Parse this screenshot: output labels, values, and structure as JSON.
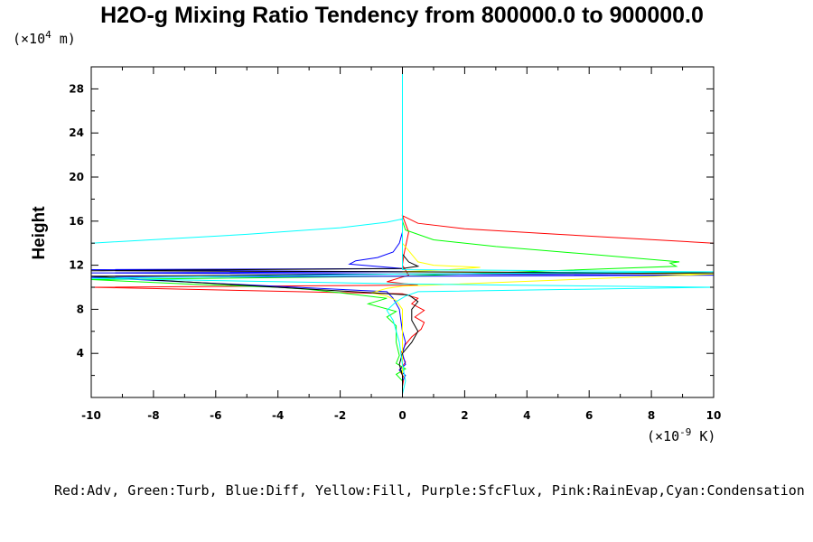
{
  "chart_data": {
    "type": "line",
    "title": "H2O-g Mixing Ratio Tendency from 800000.0 to 900000.0",
    "ylabel": "Height",
    "y_unit": {
      "prefix": "(×10",
      "exp": "4",
      "suffix": " m)"
    },
    "x_unit": {
      "prefix": "(×10",
      "exp": "-9",
      "suffix": " K)"
    },
    "xlim": [
      -10,
      10
    ],
    "ylim": [
      0,
      30
    ],
    "x_ticks": [
      "-10",
      "-8",
      "-6",
      "-4",
      "-2",
      "0",
      "2",
      "4",
      "6",
      "8",
      "10"
    ],
    "y_ticks": [
      "4",
      "8",
      "12",
      "16",
      "20",
      "24",
      "28"
    ],
    "legend_text": "Red:Adv, Green:Turb, Blue:Diff, Yellow:Fill, Purple:SfcFlux, Pink:RainEvap,Cyan:Condensation",
    "series": [
      {
        "color": "#ff0000",
        "points": [
          [
            0,
            1
          ],
          [
            0.05,
            1.8
          ],
          [
            -0.1,
            2.5
          ],
          [
            0.1,
            3.2
          ],
          [
            -0.05,
            4
          ],
          [
            0.1,
            4.8
          ],
          [
            0.3,
            5.5
          ],
          [
            0.6,
            6.2
          ],
          [
            0.7,
            6.8
          ],
          [
            0.4,
            7.3
          ],
          [
            0.7,
            7.9
          ],
          [
            0.3,
            8.5
          ],
          [
            0.5,
            9.0
          ],
          [
            0,
            9.4
          ],
          [
            -10,
            10
          ],
          [
            0.5,
            10.2
          ],
          [
            -0.5,
            10.5
          ],
          [
            0.2,
            11.1
          ],
          [
            0,
            12
          ],
          [
            0.05,
            13
          ],
          [
            0.2,
            15
          ],
          [
            0,
            16.5
          ],
          [
            0.5,
            15.8
          ],
          [
            2,
            15.3
          ],
          [
            5,
            14.8
          ],
          [
            10,
            14.0
          ]
        ]
      },
      {
        "color": "#00ff00",
        "points": [
          [
            0,
            0.5
          ],
          [
            0,
            1.5
          ],
          [
            -0.2,
            2.1
          ],
          [
            0.1,
            2.6
          ],
          [
            -0.2,
            3.1
          ],
          [
            -0.1,
            3.8
          ],
          [
            -0.2,
            5
          ],
          [
            -0.2,
            6.5
          ],
          [
            -0.5,
            7.3
          ],
          [
            -0.2,
            7.8
          ],
          [
            -1.1,
            8.5
          ],
          [
            -0.5,
            9.0
          ],
          [
            -2,
            9.5
          ],
          [
            -3,
            9.8
          ],
          [
            -4,
            10.0
          ],
          [
            -7,
            10.3
          ],
          [
            -10,
            10.7
          ],
          [
            0,
            11.0
          ],
          [
            8.8,
            11.9
          ],
          [
            8.6,
            12.2
          ],
          [
            8.9,
            12.3
          ],
          [
            6,
            13
          ],
          [
            3,
            13.7
          ],
          [
            1,
            14.3
          ],
          [
            0.1,
            15.2
          ],
          [
            0,
            16
          ]
        ]
      },
      {
        "color": "#0000ff",
        "points": [
          [
            0,
            0.3
          ],
          [
            0,
            1.5
          ],
          [
            0.1,
            2.0
          ],
          [
            -0.1,
            2.5
          ],
          [
            0.1,
            3.0
          ],
          [
            0,
            4.0
          ],
          [
            0.1,
            5
          ],
          [
            0,
            6
          ],
          [
            -0.1,
            8
          ],
          [
            -0.3,
            9.0
          ],
          [
            -0.5,
            9.6
          ],
          [
            -10,
            10.9
          ],
          [
            0,
            11.0
          ],
          [
            10,
            11.1
          ],
          [
            -10,
            11.3
          ],
          [
            0,
            11.4
          ],
          [
            -10,
            11.6
          ],
          [
            0,
            11.7
          ],
          [
            -1.7,
            12.1
          ],
          [
            -1.5,
            12.4
          ],
          [
            -0.8,
            12.7
          ],
          [
            -0.3,
            13.2
          ],
          [
            -0.1,
            14.0
          ],
          [
            0,
            15
          ]
        ]
      },
      {
        "color": "#ffff00",
        "points": [
          [
            0,
            0.5
          ],
          [
            0,
            3
          ],
          [
            0,
            6
          ],
          [
            0,
            8
          ],
          [
            -0.2,
            8.8
          ],
          [
            -0.5,
            9.2
          ],
          [
            -1.0,
            9.5
          ],
          [
            -0.5,
            9.9
          ],
          [
            0,
            10.1
          ],
          [
            10,
            11.2
          ],
          [
            0,
            11.4
          ],
          [
            1.5,
            11.6
          ],
          [
            2.5,
            11.8
          ],
          [
            1,
            12.0
          ],
          [
            0.5,
            12.3
          ],
          [
            0,
            14
          ],
          [
            0,
            16
          ]
        ]
      },
      {
        "color": "#000000",
        "points": [
          [
            0,
            0.3
          ],
          [
            0,
            2
          ],
          [
            -0.1,
            3
          ],
          [
            0,
            4
          ],
          [
            0.3,
            5
          ],
          [
            0.5,
            6
          ],
          [
            0.3,
            7
          ],
          [
            0.3,
            8
          ],
          [
            0.5,
            8.7
          ],
          [
            0.2,
            9.3
          ],
          [
            -10,
            11.0
          ],
          [
            0,
            11.2
          ],
          [
            10,
            11.3
          ],
          [
            -10,
            11.5
          ],
          [
            0,
            11.7
          ],
          [
            0.5,
            11.9
          ],
          [
            0.2,
            12.3
          ],
          [
            0,
            13
          ]
        ]
      },
      {
        "color": "#00ffff",
        "points": [
          [
            0,
            0.3
          ],
          [
            0.1,
            1.5
          ],
          [
            0,
            3
          ],
          [
            -0.1,
            5
          ],
          [
            -0.3,
            7
          ],
          [
            -0.5,
            7.9
          ],
          [
            -0.2,
            8.7
          ],
          [
            0.1,
            9.2
          ],
          [
            0.5,
            9.6
          ],
          [
            10,
            10.0
          ],
          [
            0,
            10.3
          ],
          [
            -10,
            10.8
          ],
          [
            0,
            11.2
          ],
          [
            10,
            11.4
          ],
          [
            0,
            11.6
          ],
          [
            0,
            13
          ],
          [
            0,
            15
          ],
          [
            0,
            16.2
          ],
          [
            -0.5,
            15.9
          ],
          [
            -2,
            15.4
          ],
          [
            -5,
            14.8
          ],
          [
            -10,
            14.0
          ]
        ]
      },
      {
        "color": "#00ffff",
        "points": [
          [
            0,
            16.2
          ],
          [
            0,
            30
          ]
        ]
      }
    ]
  }
}
